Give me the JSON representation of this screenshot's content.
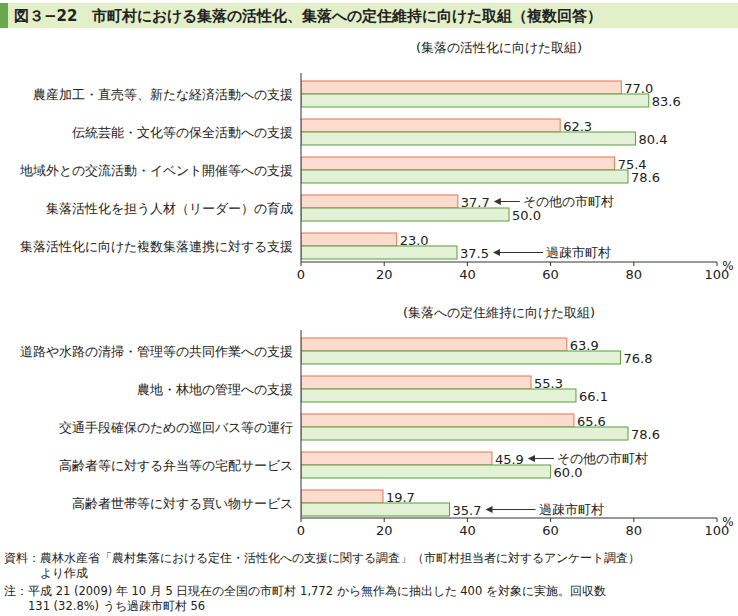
{
  "figure_title": "図３−22　市町村における集落の活性化、集落への定住維持に向けた取組（複数回答）",
  "chart_data": [
    {
      "type": "bar",
      "orientation": "horizontal",
      "title": "(集落の活性化に向けた取組)",
      "categories": [
        "農産加工・直売等、新たな経済活動への支援",
        "伝統芸能・文化等の保全活動への支援",
        "地域外との交流活動・イベント開催等への支援",
        "集落活性化を担う人材（リーダー）の育成",
        "集落活性化に向けた複数集落連携に対する支援"
      ],
      "series": [
        {
          "name": "その他の市町村",
          "color": "#fcdccf",
          "values": [
            77.0,
            62.3,
            75.4,
            37.7,
            23.0
          ],
          "value_labels": [
            "77.0",
            "62.3",
            "75.4",
            "37.7",
            "23.0"
          ]
        },
        {
          "name": "過疎市町村",
          "color": "#e3f1d6",
          "values": [
            83.6,
            80.4,
            78.6,
            50.0,
            37.5
          ],
          "value_labels": [
            "83.6",
            "80.4",
            "78.6",
            "50.0",
            "37.5"
          ]
        }
      ],
      "xlim": [
        0,
        100
      ],
      "xticks": [
        0,
        20,
        40,
        60,
        80,
        100
      ],
      "x_label": "%",
      "grid": false,
      "data_labels": true
    },
    {
      "type": "bar",
      "orientation": "horizontal",
      "title": "(集落への定住維持に向けた取組)",
      "categories": [
        "道路や水路の清掃・管理等の共同作業への支援",
        "農地・林地の管理への支援",
        "交通手段確保のための巡回バス等の運行",
        "高齢者等に対する弁当等の宅配サービス",
        "高齢者世帯等に対する買い物サービス"
      ],
      "series": [
        {
          "name": "その他の市町村",
          "color": "#fcdccf",
          "values": [
            63.9,
            55.3,
            65.6,
            45.9,
            19.7
          ],
          "value_labels": [
            "63.9",
            "55.3",
            "65.6",
            "45.9",
            "19.7"
          ]
        },
        {
          "name": "過疎市町村",
          "color": "#e3f1d6",
          "values": [
            76.8,
            66.1,
            78.6,
            60.0,
            35.7
          ],
          "value_labels": [
            "76.8",
            "66.1",
            "78.6",
            "60.0",
            "35.7"
          ]
        }
      ],
      "xlim": [
        0,
        100
      ],
      "xticks": [
        0,
        20,
        40,
        60,
        80,
        100
      ],
      "x_label": "%",
      "grid": false,
      "data_labels": true
    }
  ],
  "source": [
    "資料：農林水産省「農村集落における定住・活性化への支援に関する調査」（市町村担当者に対するアンケート調査）",
    "より作成"
  ],
  "note": [
    "注：平成 21 (2009) 年 10 月 5 日現在の全国の市町村 1,772 から無作為に抽出した 400 を対象に実施。回収数",
    "131 (32.8%) うち過疎市町村 56"
  ]
}
